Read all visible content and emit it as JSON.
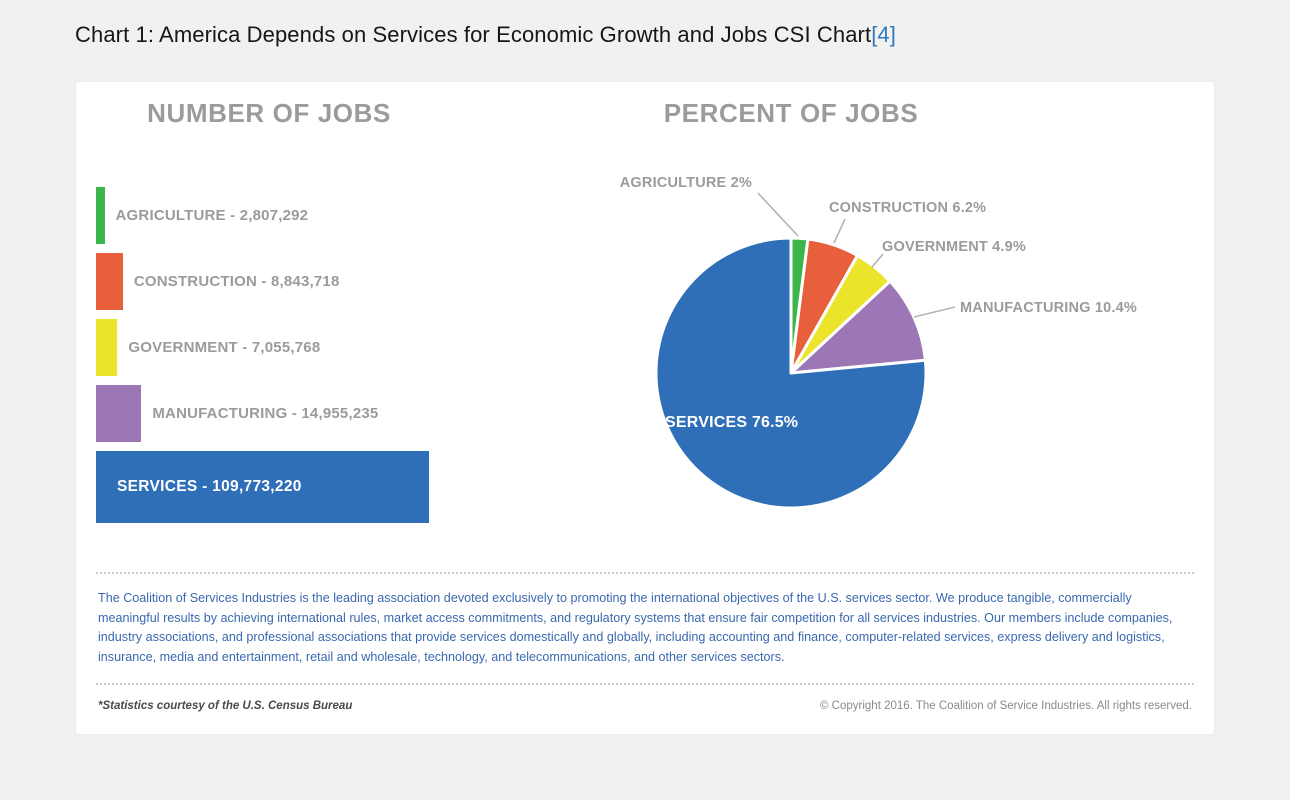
{
  "page": {
    "background": "#f1f1f0",
    "heading": "Chart 1: America Depends on Services for Economic Growth and Jobs CSI Chart",
    "heading_ref": "[4]",
    "link_color": "#2b7bc0"
  },
  "chart_data": [
    {
      "type": "bar",
      "orientation": "horizontal",
      "title": "NUMBER OF JOBS",
      "categories": [
        "AGRICULTURE",
        "CONSTRUCTION",
        "GOVERNMENT",
        "MANUFACTURING",
        "SERVICES"
      ],
      "values": [
        2807292,
        8843718,
        7055768,
        14955235,
        109773220
      ],
      "labels": [
        "AGRICULTURE - 2,807,292",
        "CONSTRUCTION - 8,843,718",
        "GOVERNMENT - 7,055,768",
        "MANUFACTURING - 14,955,235",
        "SERVICES - 109,773,220"
      ],
      "colors": [
        "#3cb54b",
        "#e7603b",
        "#ece32b",
        "#9d77b5",
        "#2e6fb7"
      ],
      "xlim": [
        0,
        109773220
      ],
      "grid": false,
      "legend": "none"
    },
    {
      "type": "pie",
      "title": "PERCENT OF JOBS",
      "categories": [
        "AGRICULTURE",
        "CONSTRUCTION",
        "GOVERNMENT",
        "MANUFACTURING",
        "SERVICES"
      ],
      "values": [
        2,
        6.2,
        4.9,
        10.4,
        76.5
      ],
      "labels": [
        "AGRICULTURE 2%",
        "CONSTRUCTION 6.2%",
        "GOVERNMENT 4.9%",
        "MANUFACTURING 10.4%",
        "SERVICES 76.5%"
      ],
      "colors": [
        "#3cb54b",
        "#e7603b",
        "#ece32b",
        "#9d77b5",
        "#2e6fb7"
      ],
      "start_angle_deg": 0,
      "direction": "clockwise",
      "legend": "none"
    }
  ],
  "card": {
    "about_text": "The Coalition of Services Industries is the leading association devoted exclusively to promoting the international objectives of the U.S. services sector. We produce tangible, commercially meaningful results by achieving international rules, market access commitments, and regulatory systems that ensure fair competition for all services industries. Our members include companies, industry associations, and professional associations that provide services domestically and globally, including accounting and finance, computer-related services, express delivery and logistics, insurance, media and entertainment, retail and wholesale, technology, and telecommunications, and other services sectors.",
    "about_color": "#3a68b0",
    "footer_left": "*Statistics courtesy of the U.S. Census Bureau",
    "footer_right": "© Copyright 2016. The Coalition of Service Industries. All rights reserved."
  }
}
